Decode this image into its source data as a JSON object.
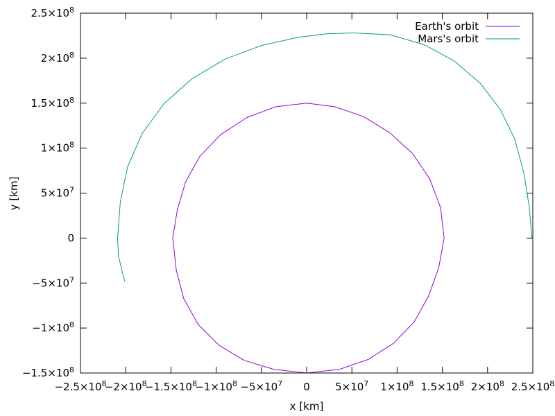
{
  "chart_data": {
    "type": "line",
    "title": "",
    "xlabel": "x [km]",
    "ylabel": "y [km]",
    "xlim": [
      -250000000,
      250000000
    ],
    "ylim": [
      -150000000,
      250000000
    ],
    "grid": false,
    "legend_position": "top-right",
    "x_ticks": [
      {
        "value": -250000000,
        "mant": "−2.5×10",
        "exp": "8"
      },
      {
        "value": -200000000,
        "mant": "−2×10",
        "exp": "8"
      },
      {
        "value": -150000000,
        "mant": "−1.5×10",
        "exp": "8"
      },
      {
        "value": -100000000,
        "mant": "−1×10",
        "exp": "8"
      },
      {
        "value": -50000000,
        "mant": "−5×10",
        "exp": "7"
      },
      {
        "value": 0,
        "mant": "0",
        "exp": ""
      },
      {
        "value": 50000000,
        "mant": "5×10",
        "exp": "7"
      },
      {
        "value": 100000000,
        "mant": "1×10",
        "exp": "8"
      },
      {
        "value": 150000000,
        "mant": "1.5×10",
        "exp": "8"
      },
      {
        "value": 200000000,
        "mant": "2×10",
        "exp": "8"
      },
      {
        "value": 250000000,
        "mant": "2.5×10",
        "exp": "8"
      }
    ],
    "y_ticks": [
      {
        "value": -150000000,
        "mant": "−1.5×10",
        "exp": "8"
      },
      {
        "value": -100000000,
        "mant": "−1×10",
        "exp": "8"
      },
      {
        "value": -50000000,
        "mant": "−5×10",
        "exp": "7"
      },
      {
        "value": 0,
        "mant": "0",
        "exp": ""
      },
      {
        "value": 50000000,
        "mant": "5×10",
        "exp": "7"
      },
      {
        "value": 100000000,
        "mant": "1×10",
        "exp": "8"
      },
      {
        "value": 150000000,
        "mant": "1.5×10",
        "exp": "8"
      },
      {
        "value": 200000000,
        "mant": "2×10",
        "exp": "8"
      },
      {
        "value": 250000000,
        "mant": "2.5×10",
        "exp": "8"
      }
    ],
    "series": [
      {
        "name": "Earth's orbit",
        "color": "#9400d3",
        "x": [
          152000000,
          148000000,
          136000000,
          117000000,
          92000000,
          63000000,
          31000000,
          0,
          -34000000,
          -66000000,
          -95000000,
          -118000000,
          -134000000,
          -143000000,
          -148000000,
          -144000000,
          -136000000,
          -120000000,
          -97000000,
          -69000000,
          -36000000,
          0,
          36000000,
          68000000,
          96000000,
          119000000,
          135000000,
          146000000,
          152000000
        ],
        "y": [
          0,
          34000000,
          66000000,
          94000000,
          117000000,
          135000000,
          146000000,
          150000000,
          146000000,
          134000000,
          115000000,
          91000000,
          62000000,
          31000000,
          0,
          -36000000,
          -67000000,
          -96000000,
          -119000000,
          -136000000,
          -146000000,
          -150000000,
          -146000000,
          -135000000,
          -117000000,
          -93000000,
          -64000000,
          -33000000,
          0
        ]
      },
      {
        "name": "Mars's orbit",
        "color": "#009e73",
        "x": [
          249000000,
          246000000,
          240000000,
          230000000,
          214000000,
          192000000,
          163000000,
          130000000,
          92000000,
          52000000,
          22000000,
          -10000000,
          -50000000,
          -90000000,
          -127000000,
          -158000000,
          -182000000,
          -198000000,
          -206000000,
          -209000000,
          -208000000,
          -204000000,
          -201000000
        ],
        "y": [
          0,
          35000000,
          73000000,
          110000000,
          143000000,
          172000000,
          197000000,
          215000000,
          226000000,
          228000000,
          227000000,
          223000000,
          214000000,
          199000000,
          177000000,
          149000000,
          116000000,
          79000000,
          40000000,
          0,
          -20000000,
          -37000000,
          -48000000
        ]
      }
    ]
  }
}
